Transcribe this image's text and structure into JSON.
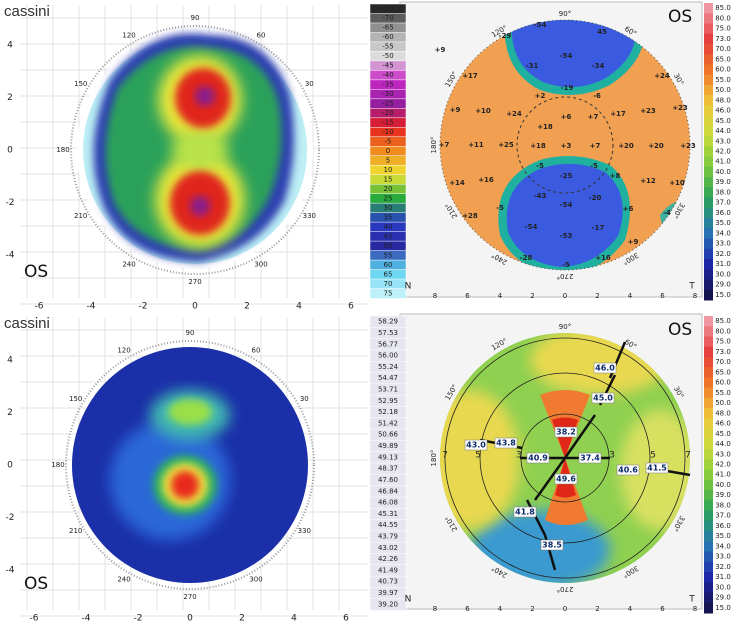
{
  "panels": [
    {
      "brand": "cassini",
      "eye": "OS",
      "legend": [
        "-75",
        "-70",
        "-65",
        "-60",
        "-55",
        "-50",
        "-45",
        "-40",
        "-35",
        "-30",
        "-25",
        "-20",
        "-15",
        "-10",
        "-5",
        "0",
        "5",
        "10",
        "15",
        "20",
        "25",
        "30",
        "35",
        "40",
        "45",
        "50",
        "55",
        "60",
        "65",
        "70",
        "75"
      ],
      "y_ticks": [
        "4",
        "2",
        "0",
        "-2",
        "-4"
      ],
      "x_ticks": [
        "-6",
        "-4",
        "-2",
        "0",
        "2",
        "4",
        "6"
      ],
      "angles": [
        "90",
        "120",
        "150",
        "180",
        "210",
        "240",
        "270",
        "300",
        "330",
        "30",
        "60"
      ]
    },
    {
      "eye": "OS",
      "nasal": "N",
      "temporal": "T",
      "legend": [
        "85.0",
        "80.0",
        "75.0",
        "73.0",
        "70.0",
        "65.0",
        "60.0",
        "55.0",
        "50.0",
        "48.0",
        "46.0",
        "45.0",
        "44.0",
        "43.0",
        "42.0",
        "41.0",
        "40.0",
        "39.0",
        "38.0",
        "37.0",
        "36.0",
        "35.0",
        "34.0",
        "33.0",
        "32.0",
        "31.0",
        "30.0",
        "29.0",
        "15.0"
      ],
      "x_ticks": [
        "8",
        "6",
        "4",
        "2",
        "0",
        "2",
        "4",
        "6",
        "8"
      ],
      "angles": [
        "90°",
        "120°",
        "150°",
        "180°",
        "210°",
        "240°",
        "270°",
        "300°",
        "330°",
        "30°",
        "60°"
      ],
      "values": [
        "+9",
        "-29",
        "-54",
        "45",
        "-54",
        "-31",
        "-34",
        "+17",
        "+24",
        "-19",
        "-6",
        "+2",
        "+9",
        "+10",
        "+24",
        "+6",
        "+7",
        "+17",
        "+23",
        "+23",
        "+18",
        "+7",
        "+11",
        "+25",
        "+18",
        "+3",
        "+7",
        "+20",
        "+20",
        "+23",
        "+14",
        "+16",
        "-5",
        "-5",
        "-25",
        "+8",
        "+12",
        "+10",
        "-5",
        "-43",
        "-54",
        "-20",
        "+6",
        "+28",
        "-54",
        "-53",
        "-17",
        "-4",
        "+9",
        "-28",
        "-5",
        "+16"
      ]
    },
    {
      "brand": "cassini",
      "eye": "OS",
      "legend": [
        "58.29",
        "57.53",
        "56.77",
        "56.00",
        "55.24",
        "54.47",
        "53.71",
        "52.95",
        "52.18",
        "51.42",
        "50.66",
        "49.89",
        "49.13",
        "48.37",
        "47.60",
        "46.84",
        "46.08",
        "45.31",
        "44.55",
        "43.79",
        "43.02",
        "42.26",
        "41.49",
        "40.73",
        "39.97",
        "39.20"
      ],
      "y_ticks": [
        "4",
        "2",
        "0",
        "-2",
        "-4"
      ],
      "x_ticks": [
        "-6",
        "-4",
        "-2",
        "0",
        "2",
        "4",
        "6"
      ],
      "angles": [
        "90",
        "120",
        "150",
        "180",
        "210",
        "240",
        "270",
        "300",
        "330",
        "30",
        "60"
      ]
    },
    {
      "eye": "OS",
      "nasal": "N",
      "temporal": "T",
      "legend": [
        "85.0",
        "80.0",
        "75.0",
        "73.0",
        "70.0",
        "65.0",
        "60.0",
        "55.0",
        "50.0",
        "48.0",
        "46.0",
        "45.0",
        "44.0",
        "43.0",
        "42.0",
        "41.0",
        "40.0",
        "39.0",
        "38.0",
        "37.0",
        "36.0",
        "35.0",
        "34.0",
        "33.0",
        "32.0",
        "31.0",
        "30.0",
        "29.0",
        "15.0"
      ],
      "x_ticks": [
        "8",
        "6",
        "4",
        "2",
        "0",
        "2",
        "4",
        "6",
        "8"
      ],
      "angles": [
        "90°",
        "120°",
        "150°",
        "180°",
        "210°",
        "240°",
        "270°",
        "300°",
        "330°",
        "30°",
        "60°"
      ],
      "values": [
        "46.0",
        "45.0",
        "43.0",
        "43.8",
        "38.2",
        "40.9",
        "37.4",
        "49.6",
        "40.6",
        "41.5",
        "41.8",
        "38.5"
      ],
      "rings": [
        "7",
        "5",
        "3",
        "3",
        "5",
        "7"
      ]
    }
  ]
}
